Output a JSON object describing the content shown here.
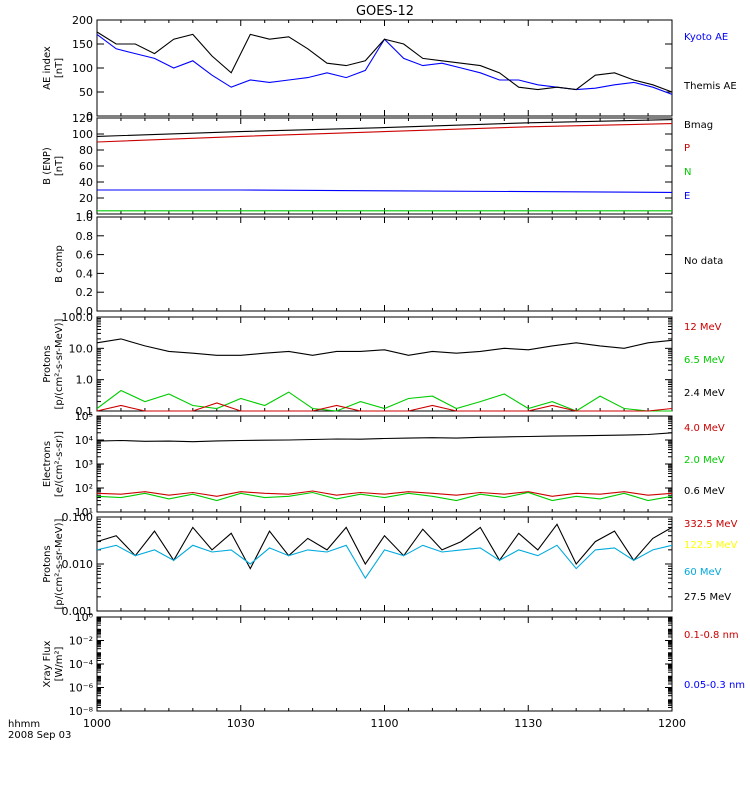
{
  "title": "GOES-12",
  "footer": {
    "time_label": "hhmm",
    "date_label": "2008 Sep 03"
  },
  "x_ticks": [
    "1000",
    "1030",
    "1100",
    "1130",
    "1200"
  ],
  "x_tick_values": [
    0,
    30,
    60,
    90,
    120
  ],
  "colors": {
    "black": "#000000",
    "red": "#cc0000",
    "green": "#00cc00",
    "blue": "#0000ff",
    "cyan": "#00aadd",
    "yellow": "#ffff00"
  },
  "chart_data": [
    {
      "id": "ae",
      "type": "line",
      "ylabel_lines": [
        "AE index",
        "[nT]"
      ],
      "ylim": [
        0,
        200
      ],
      "yscale": "linear",
      "ytick_labels": [
        "0",
        "50",
        "100",
        "150",
        "200"
      ],
      "ytick_values": [
        0,
        50,
        100,
        150,
        200
      ],
      "legend": [
        {
          "text": "Kyoto AE",
          "color": "#0000ff"
        },
        {
          "text": "Themis AE",
          "color": "#000000"
        }
      ],
      "x": [
        0,
        4,
        8,
        12,
        16,
        20,
        24,
        28,
        32,
        36,
        40,
        44,
        48,
        52,
        56,
        60,
        64,
        68,
        72,
        76,
        80,
        84,
        88,
        92,
        96,
        100,
        104,
        108,
        112,
        116,
        120
      ],
      "series": [
        {
          "name": "Kyoto AE",
          "color": "#0000ff",
          "values": [
            170,
            140,
            130,
            120,
            100,
            115,
            85,
            60,
            75,
            70,
            75,
            80,
            90,
            80,
            95,
            160,
            120,
            105,
            110,
            100,
            90,
            75,
            75,
            65,
            60,
            55,
            58,
            65,
            70,
            60,
            45
          ]
        },
        {
          "name": "Themis AE",
          "color": "#000000",
          "values": [
            175,
            150,
            150,
            130,
            160,
            170,
            125,
            90,
            170,
            160,
            165,
            140,
            110,
            105,
            115,
            160,
            150,
            120,
            115,
            110,
            105,
            90,
            60,
            55,
            60,
            55,
            85,
            90,
            75,
            65,
            50
          ]
        }
      ]
    },
    {
      "id": "bfield",
      "type": "line",
      "ylabel_lines": [
        "B (ENP)",
        "[nT]"
      ],
      "ylim": [
        0,
        120
      ],
      "yscale": "linear",
      "ytick_labels": [
        "0",
        "20",
        "40",
        "60",
        "80",
        "100",
        "120"
      ],
      "ytick_values": [
        0,
        20,
        40,
        60,
        80,
        100,
        120
      ],
      "legend": [
        {
          "text": "Bmag",
          "color": "#000000"
        },
        {
          "text": "P",
          "color": "#cc0000"
        },
        {
          "text": "N",
          "color": "#00cc00"
        },
        {
          "text": "E",
          "color": "#0000ff"
        }
      ],
      "x": [
        0,
        30,
        60,
        90,
        120
      ],
      "series": [
        {
          "name": "Bmag",
          "color": "#000000",
          "values": [
            97,
            103,
            108,
            114,
            118
          ]
        },
        {
          "name": "P",
          "color": "#cc0000",
          "values": [
            90,
            97,
            103,
            109,
            113
          ]
        },
        {
          "name": "N",
          "color": "#00cc00",
          "values": [
            4,
            4,
            4,
            4,
            4
          ]
        },
        {
          "name": "E",
          "color": "#0000ff",
          "values": [
            30,
            30,
            29,
            28,
            27
          ]
        }
      ]
    },
    {
      "id": "bcomp",
      "type": "line",
      "ylabel_lines": [
        "B comp"
      ],
      "ylim": [
        0,
        1
      ],
      "yscale": "linear",
      "ytick_labels": [
        "0.0",
        "0.2",
        "0.4",
        "0.6",
        "0.8",
        "1.0"
      ],
      "ytick_values": [
        0,
        0.2,
        0.4,
        0.6,
        0.8,
        1.0
      ],
      "legend": [
        {
          "text": "No data",
          "color": "#000000"
        }
      ],
      "x": [],
      "series": []
    },
    {
      "id": "protons1",
      "type": "line",
      "ylabel_lines": [
        "Protons",
        "[p/(cm²-s-sr-MeV)]"
      ],
      "ylim": [
        0.1,
        100
      ],
      "yscale": "log",
      "ytick_labels": [
        "0.1",
        "1.0",
        "10.0",
        "100.0"
      ],
      "ytick_values": [
        0.1,
        1,
        10,
        100
      ],
      "legend": [
        {
          "text": "12 MeV",
          "color": "#cc0000"
        },
        {
          "text": "6.5 MeV",
          "color": "#00cc00"
        },
        {
          "text": "2.4 MeV",
          "color": "#000000"
        }
      ],
      "x": [
        0,
        5,
        10,
        15,
        20,
        25,
        30,
        35,
        40,
        45,
        50,
        55,
        60,
        65,
        70,
        75,
        80,
        85,
        90,
        95,
        100,
        105,
        110,
        115,
        120
      ],
      "series": [
        {
          "name": "2.4 MeV",
          "color": "#000000",
          "values": [
            15,
            20,
            12,
            8,
            7,
            6,
            6,
            7,
            8,
            6,
            8,
            8,
            9,
            6,
            8,
            7,
            8,
            10,
            9,
            12,
            15,
            12,
            10,
            15,
            18
          ]
        },
        {
          "name": "6.5 MeV",
          "color": "#00cc00",
          "values": [
            0.12,
            0.45,
            0.2,
            0.35,
            0.15,
            0.12,
            0.25,
            0.15,
            0.4,
            0.12,
            0.1,
            0.2,
            0.12,
            0.25,
            0.3,
            0.12,
            0.2,
            0.35,
            0.12,
            0.2,
            0.1,
            0.3,
            0.12,
            0.1,
            0.1
          ]
        },
        {
          "name": "12 MeV",
          "color": "#cc0000",
          "values": [
            0.1,
            0.15,
            0.1,
            0.1,
            0.1,
            0.18,
            0.1,
            0.1,
            0.1,
            0.1,
            0.15,
            0.1,
            0.1,
            0.1,
            0.15,
            0.1,
            0.1,
            0.1,
            0.1,
            0.15,
            0.1,
            0.1,
            0.1,
            0.1,
            0.12
          ]
        }
      ]
    },
    {
      "id": "electrons",
      "type": "line",
      "ylabel_lines": [
        "Electrons",
        "[e/(cm²-s-sr)]"
      ],
      "ylim": [
        10,
        100000
      ],
      "yscale": "log",
      "ytick_labels": [
        "10¹",
        "10²",
        "10³",
        "10⁴",
        "10⁵"
      ],
      "ytick_values": [
        10,
        100,
        1000,
        10000,
        100000
      ],
      "legend": [
        {
          "text": "4.0 MeV",
          "color": "#cc0000"
        },
        {
          "text": "2.0 MeV",
          "color": "#00cc00"
        },
        {
          "text": "0.6 MeV",
          "color": "#000000"
        }
      ],
      "x": [
        0,
        5,
        10,
        15,
        20,
        25,
        30,
        35,
        40,
        45,
        50,
        55,
        60,
        65,
        70,
        75,
        80,
        85,
        90,
        95,
        100,
        105,
        110,
        115,
        120
      ],
      "series": [
        {
          "name": "0.6 MeV",
          "color": "#000000",
          "values": [
            9000,
            9500,
            8800,
            9000,
            8500,
            9200,
            9500,
            9800,
            10000,
            10500,
            11000,
            10800,
            11500,
            12000,
            12500,
            12000,
            13000,
            13500,
            14000,
            14500,
            15000,
            15500,
            16000,
            17000,
            20000
          ]
        },
        {
          "name": "4.0 MeV",
          "color": "#cc0000",
          "values": [
            60,
            55,
            70,
            50,
            65,
            45,
            70,
            60,
            55,
            75,
            50,
            65,
            55,
            70,
            60,
            50,
            65,
            55,
            70,
            45,
            60,
            55,
            70,
            50,
            60
          ]
        },
        {
          "name": "2.0 MeV",
          "color": "#00cc00",
          "values": [
            45,
            40,
            60,
            35,
            55,
            30,
            60,
            40,
            45,
            65,
            35,
            55,
            40,
            60,
            45,
            30,
            55,
            40,
            65,
            30,
            45,
            35,
            60,
            30,
            45
          ]
        }
      ]
    },
    {
      "id": "protons2",
      "type": "line",
      "ylabel_lines": [
        "Protons",
        "[p/(cm²-s-sr-MeV)]"
      ],
      "ylim": [
        0.001,
        0.1
      ],
      "yscale": "log",
      "ytick_labels": [
        "0.001",
        "0.010",
        "0.100"
      ],
      "ytick_values": [
        0.001,
        0.01,
        0.1
      ],
      "legend": [
        {
          "text": "332.5 MeV",
          "color": "#cc0000"
        },
        {
          "text": "122.5 MeV",
          "color": "#ffff00"
        },
        {
          "text": "60 MeV",
          "color": "#00aadd"
        },
        {
          "text": "27.5 MeV",
          "color": "#000000"
        }
      ],
      "x": [
        0,
        4,
        8,
        12,
        16,
        20,
        24,
        28,
        32,
        36,
        40,
        44,
        48,
        52,
        56,
        60,
        64,
        68,
        72,
        76,
        80,
        84,
        88,
        92,
        96,
        100,
        104,
        108,
        112,
        116,
        120
      ],
      "series": [
        {
          "name": "27.5 MeV",
          "color": "#000000",
          "values": [
            0.03,
            0.04,
            0.015,
            0.05,
            0.012,
            0.06,
            0.02,
            0.045,
            0.008,
            0.05,
            0.015,
            0.035,
            0.02,
            0.06,
            0.01,
            0.04,
            0.015,
            0.055,
            0.02,
            0.03,
            0.06,
            0.012,
            0.045,
            0.02,
            0.07,
            0.01,
            0.03,
            0.05,
            0.012,
            0.035,
            0.06
          ]
        },
        {
          "name": "60 MeV",
          "color": "#00aadd",
          "values": [
            0.02,
            0.025,
            0.015,
            0.02,
            0.012,
            0.025,
            0.018,
            0.02,
            0.01,
            0.022,
            0.015,
            0.02,
            0.018,
            0.025,
            0.005,
            0.02,
            0.015,
            0.025,
            0.018,
            0.02,
            0.022,
            0.012,
            0.02,
            0.015,
            0.025,
            0.008,
            0.02,
            0.022,
            0.012,
            0.02,
            0.025
          ]
        }
      ]
    },
    {
      "id": "xray",
      "type": "line",
      "ylabel_lines": [
        "Xray Flux",
        "[W/m²]"
      ],
      "ylim": [
        1e-08,
        1
      ],
      "yscale": "log",
      "ytick_labels": [
        "10⁻⁸",
        "10⁻⁶",
        "10⁻⁴",
        "10⁻²",
        "10⁰"
      ],
      "ytick_values": [
        1e-08,
        1e-06,
        0.0001,
        0.01,
        1
      ],
      "legend": [
        {
          "text": "0.1-0.8 nm",
          "color": "#cc0000"
        },
        {
          "text": "0.05-0.3 nm",
          "color": "#0000ff"
        }
      ],
      "x": [],
      "series": []
    }
  ]
}
